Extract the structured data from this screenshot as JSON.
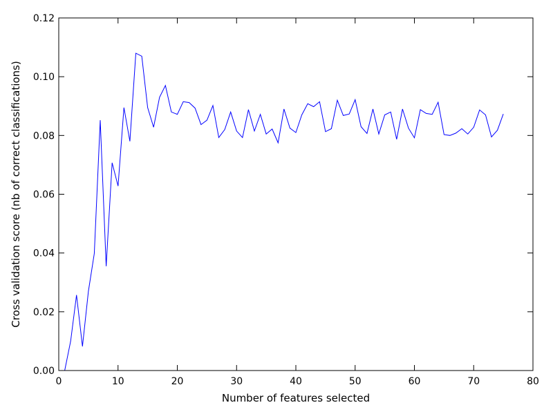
{
  "chart_data": {
    "type": "line",
    "title": "",
    "xlabel": "Number of features selected",
    "ylabel": "Cross validation score (nb of correct classifications)",
    "xlim": [
      0,
      80
    ],
    "ylim": [
      0.0,
      0.12
    ],
    "xticks": [
      0,
      10,
      20,
      30,
      40,
      50,
      60,
      70,
      80
    ],
    "xtick_labels": [
      "0",
      "10",
      "20",
      "30",
      "40",
      "50",
      "60",
      "70",
      "80"
    ],
    "yticks": [
      0.0,
      0.02,
      0.04,
      0.06,
      0.08,
      0.1,
      0.12
    ],
    "ytick_labels": [
      "0.00",
      "0.02",
      "0.04",
      "0.06",
      "0.08",
      "0.10",
      "0.12"
    ],
    "grid": false,
    "line_color": "#0000ff",
    "series": [
      {
        "x": [
          1,
          2,
          3,
          4,
          5,
          6,
          7,
          8,
          9,
          10,
          11,
          12,
          13,
          14,
          15,
          16,
          17,
          18,
          19,
          20,
          21,
          22,
          23,
          24,
          25,
          26,
          27,
          28,
          29,
          30,
          31,
          32,
          33,
          34,
          35,
          36,
          37,
          38,
          39,
          40,
          41,
          42,
          43,
          44,
          45,
          46,
          47,
          48,
          49,
          50,
          51,
          52,
          53,
          54,
          55,
          56,
          57,
          58,
          59,
          60,
          61,
          62,
          63,
          64,
          65,
          66,
          67,
          68,
          69,
          70,
          71,
          72,
          73,
          74,
          75
        ],
        "values": [
          0.0,
          0.01,
          0.0257,
          0.0082,
          0.027,
          0.0398,
          0.0852,
          0.0355,
          0.0707,
          0.0628,
          0.0895,
          0.078,
          0.108,
          0.107,
          0.0895,
          0.0828,
          0.093,
          0.097,
          0.088,
          0.0872,
          0.0915,
          0.0912,
          0.0893,
          0.0837,
          0.0852,
          0.0902,
          0.0793,
          0.082,
          0.088,
          0.0815,
          0.0793,
          0.0888,
          0.0815,
          0.0872,
          0.0805,
          0.0822,
          0.0775,
          0.089,
          0.0825,
          0.081,
          0.087,
          0.0908,
          0.0898,
          0.0915,
          0.0813,
          0.0823,
          0.092,
          0.0868,
          0.0873,
          0.0922,
          0.083,
          0.0807,
          0.089,
          0.0805,
          0.087,
          0.088,
          0.0787,
          0.089,
          0.0825,
          0.0792,
          0.0888,
          0.0875,
          0.0872,
          0.0913,
          0.0803,
          0.08,
          0.0808,
          0.0823,
          0.0805,
          0.0828,
          0.0887,
          0.087,
          0.0795,
          0.0818,
          0.0873
        ]
      }
    ]
  }
}
